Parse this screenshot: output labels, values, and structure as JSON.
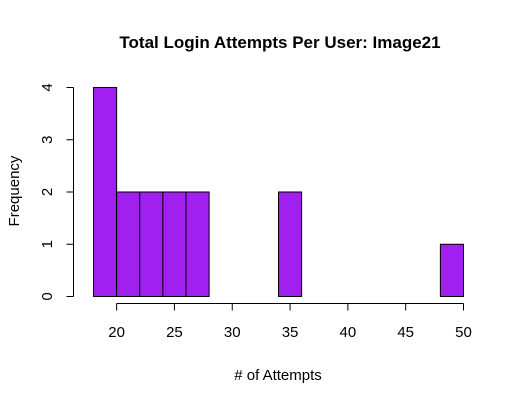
{
  "chart_data": {
    "type": "histogram",
    "title": "Total Login Attempts Per User: Image21",
    "xlabel": "# of Attempts",
    "ylabel": "Frequency",
    "bar_color": "#a020f0",
    "bins": [
      {
        "start": 18,
        "end": 20,
        "count": 4
      },
      {
        "start": 20,
        "end": 22,
        "count": 2
      },
      {
        "start": 22,
        "end": 24,
        "count": 2
      },
      {
        "start": 24,
        "end": 26,
        "count": 2
      },
      {
        "start": 26,
        "end": 28,
        "count": 2
      },
      {
        "start": 28,
        "end": 30,
        "count": 0
      },
      {
        "start": 30,
        "end": 32,
        "count": 0
      },
      {
        "start": 32,
        "end": 34,
        "count": 0
      },
      {
        "start": 34,
        "end": 36,
        "count": 2
      },
      {
        "start": 36,
        "end": 38,
        "count": 0
      },
      {
        "start": 38,
        "end": 40,
        "count": 0
      },
      {
        "start": 40,
        "end": 42,
        "count": 0
      },
      {
        "start": 42,
        "end": 44,
        "count": 0
      },
      {
        "start": 44,
        "end": 46,
        "count": 0
      },
      {
        "start": 46,
        "end": 48,
        "count": 0
      },
      {
        "start": 48,
        "end": 50,
        "count": 1
      }
    ],
    "xlim": [
      18,
      50
    ],
    "ylim": [
      0,
      4
    ],
    "x_ticks": [
      20,
      25,
      30,
      35,
      40,
      45,
      50
    ],
    "y_ticks": [
      0,
      1,
      2,
      3,
      4
    ],
    "grid": false
  }
}
